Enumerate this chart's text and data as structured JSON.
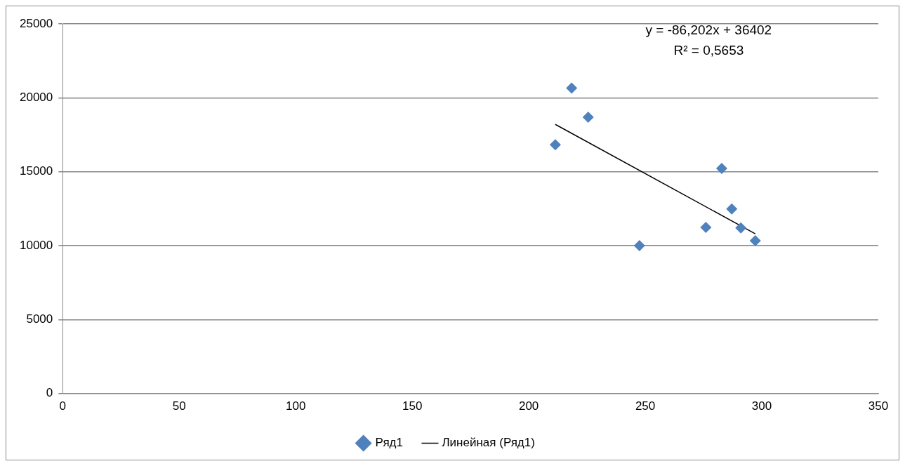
{
  "chart_data": {
    "type": "scatter",
    "x": [
      211.4,
      218.4,
      225.5,
      247.5,
      276.0,
      282.8,
      287.1,
      291.0,
      297.2
    ],
    "xlim": [
      0,
      350
    ],
    "xticks": [
      0,
      50,
      100,
      150,
      200,
      250,
      300,
      350
    ],
    "ylim": [
      0,
      25000
    ],
    "yticks": [
      0,
      5000,
      10000,
      15000,
      20000,
      25000
    ],
    "series": [
      {
        "name": "Ряд1",
        "color": "#4f81bd",
        "values": [
          16820,
          20660,
          18680,
          10000,
          11230,
          15220,
          12480,
          11200,
          10330
        ],
        "marker": "diamond"
      },
      {
        "name": "Линейная (Ряд1)",
        "type": "line",
        "color": "#000000",
        "x": [
          211.4,
          297.2
        ],
        "values": [
          18200,
          10800
        ],
        "marker": "none"
      }
    ],
    "annotations": [
      "y = -86,202x + 36402",
      "R² = 0,5653"
    ],
    "grid": "y",
    "legend": "bottom"
  }
}
